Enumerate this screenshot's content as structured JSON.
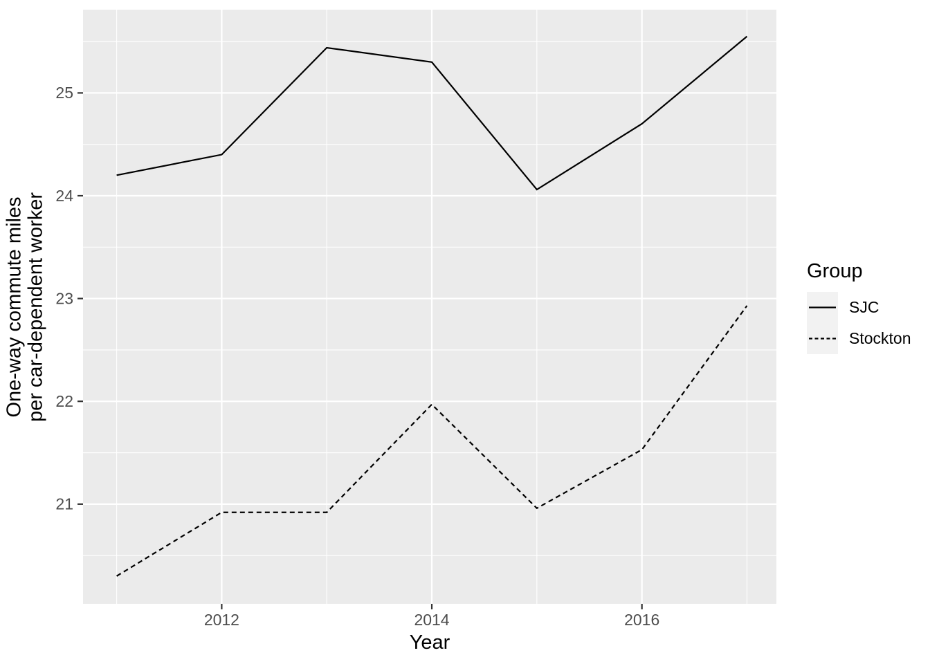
{
  "chart_data": {
    "type": "line",
    "title": "",
    "xlabel": "Year",
    "ylabel": "One-way commute miles\nper car-dependent worker",
    "legend_title": "Group",
    "legend_position": "right",
    "grid": true,
    "x": [
      2011,
      2012,
      2013,
      2014,
      2015,
      2016,
      2017
    ],
    "series": [
      {
        "name": "SJC",
        "linetype": "solid",
        "values": [
          24.2,
          24.4,
          25.44,
          25.3,
          24.06,
          24.7,
          25.55
        ]
      },
      {
        "name": "Stockton",
        "linetype": "dashed",
        "values": [
          20.3,
          20.92,
          20.92,
          21.97,
          20.96,
          21.53,
          22.93
        ]
      }
    ],
    "x_ticks": [
      2012,
      2014,
      2016
    ],
    "x_minor_ticks": [
      2011,
      2013,
      2015,
      2017
    ],
    "y_ticks": [
      21,
      22,
      23,
      24,
      25
    ],
    "y_minor_ticks": [
      20.5,
      21.5,
      22.5,
      23.5,
      24.5,
      25.5
    ],
    "xlim": [
      2010.68,
      2017.28
    ],
    "ylim": [
      20.03,
      25.81
    ],
    "colors": {
      "page_bg": "#FFFFFF",
      "panel_bg": "#EBEBEB",
      "grid": "#FFFFFF",
      "tick_label": "#4D4D4D",
      "tick_mark": "#333333",
      "line": "#000000",
      "legend_key_bg": "#F2F2F2"
    }
  }
}
